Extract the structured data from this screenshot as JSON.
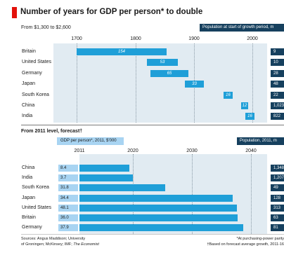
{
  "title": "Number of years for GDP per person* to double",
  "chart_data": [
    {
      "type": "bar",
      "subtitle": "From $1,300 to $2,600",
      "axis_ticks": [
        "1700",
        "1800",
        "1900",
        "2000"
      ],
      "xlim": [
        1660,
        2025
      ],
      "right_header": "Population at start of growth period, m",
      "series": [
        {
          "country": "Britain",
          "start": 1700,
          "years": 154,
          "population": "9"
        },
        {
          "country": "United States",
          "start": 1820,
          "years": 53,
          "population": "10"
        },
        {
          "country": "Germany",
          "start": 1826,
          "years": 65,
          "population": "28"
        },
        {
          "country": "Japan",
          "start": 1885,
          "years": 33,
          "population": "48"
        },
        {
          "country": "South Korea",
          "start": 1950,
          "years": 16,
          "population": "22"
        },
        {
          "country": "China",
          "start": 1981,
          "years": 12,
          "population": "1,023"
        },
        {
          "country": "India",
          "start": 1988,
          "years": 16,
          "population": "822"
        }
      ]
    },
    {
      "type": "bar",
      "subtitle": "From 2011 level, forecast†",
      "value_header": "GDP per person*, 2011, $'000",
      "axis_ticks": [
        "2011",
        "2020",
        "2030",
        "2040"
      ],
      "xlim": [
        2011,
        2040
      ],
      "right_header": "Population, 2011, m",
      "series": [
        {
          "country": "China",
          "gdp": "8.4",
          "double_year": 2019.4,
          "population": "1,348"
        },
        {
          "country": "India",
          "gdp": "3.7",
          "double_year": 2020.0,
          "population": "1,207"
        },
        {
          "country": "South Korea",
          "gdp": "31.8",
          "double_year": 2025.5,
          "population": "49"
        },
        {
          "country": "Japan",
          "gdp": "34.4",
          "double_year": 2036.9,
          "population": "128"
        },
        {
          "country": "United States",
          "gdp": "48.1",
          "double_year": 2037.6,
          "population": "313"
        },
        {
          "country": "Britain",
          "gdp": "36.0",
          "double_year": 2037.7,
          "population": "63"
        },
        {
          "country": "Germany",
          "gdp": "37.9",
          "double_year": 2038.7,
          "population": "81"
        }
      ]
    }
  ],
  "sources_line1": "Sources: Angus Maddison; University",
  "sources_line2a": "of Groningen; McKinsey; IMF; ",
  "sources_line2b": "The Economist",
  "footnote1": "*At purchasing-power parity",
  "footnote2": "†Based on forecast average growth, 2011-16",
  "colors": {
    "bar": "#1f9fd8",
    "chart_bg": "#e1ebf2",
    "dark_header": "#16405e",
    "light_header": "#a8d4f2",
    "accent": "#e3120b"
  }
}
